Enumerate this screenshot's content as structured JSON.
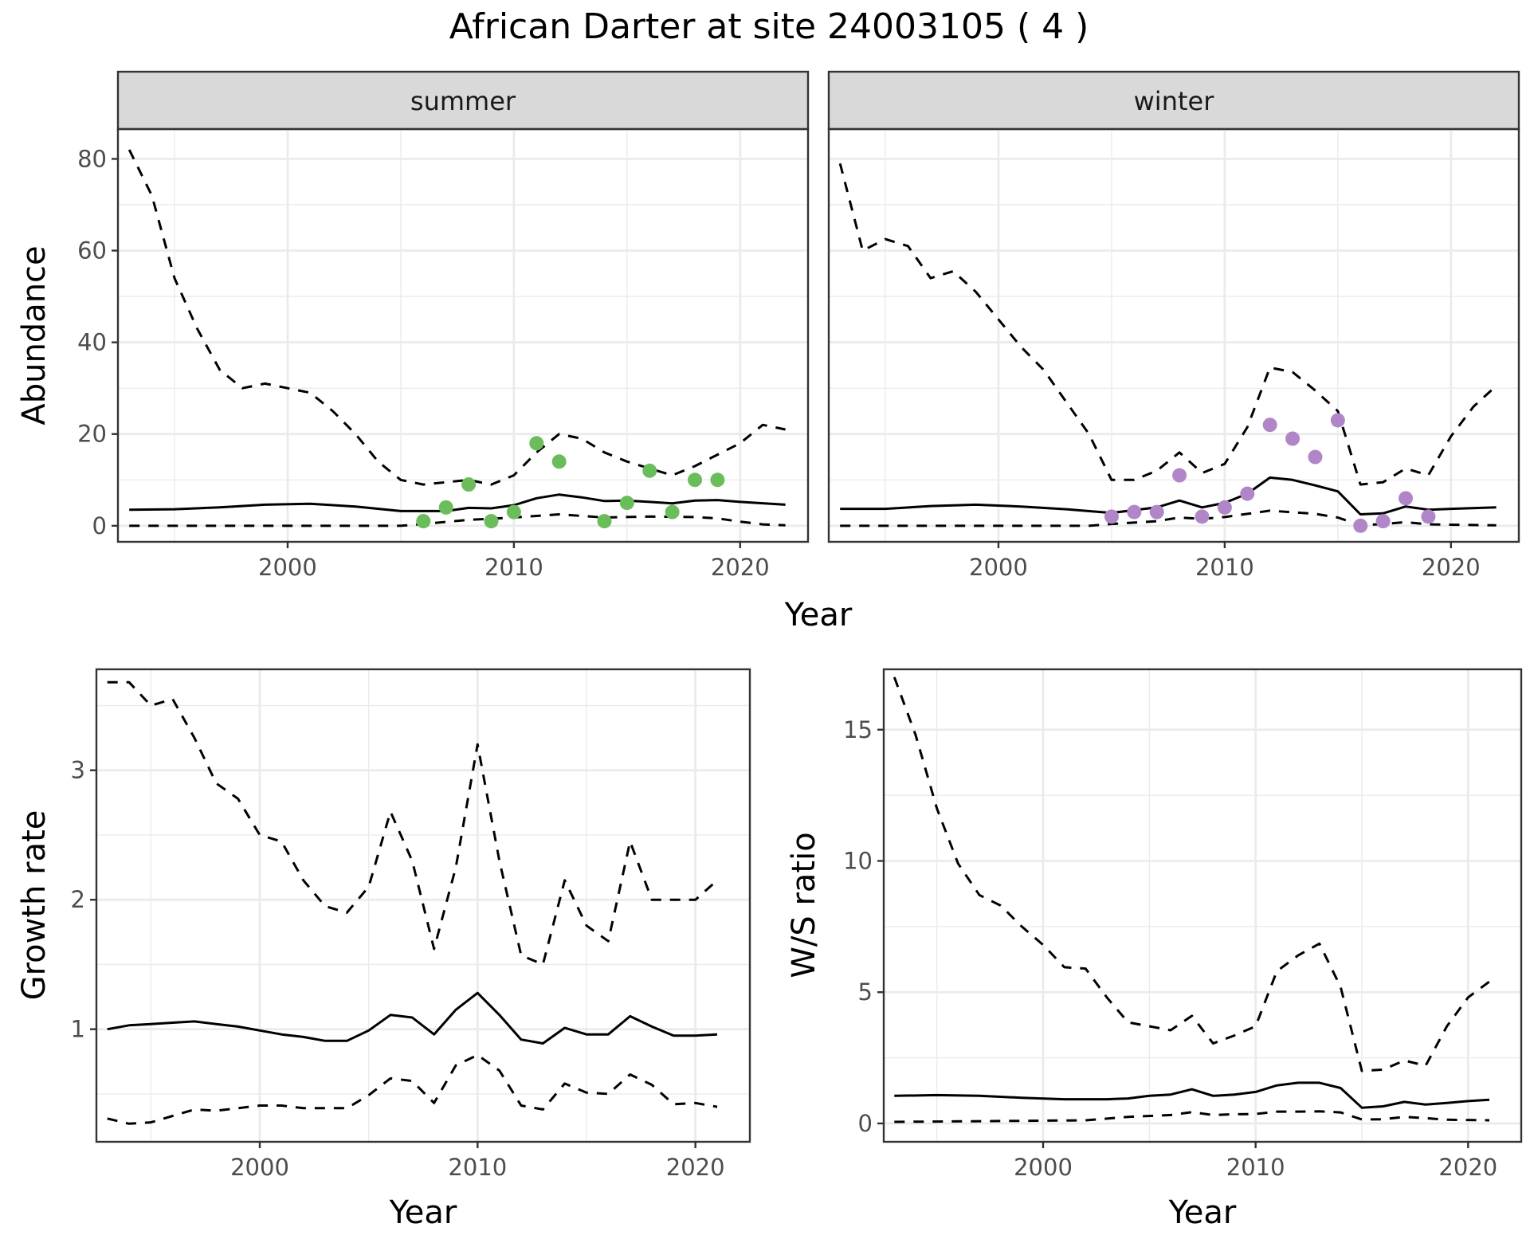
{
  "title": "African Darter at site 24003105 ( 4 )",
  "chart_data": [
    {
      "type": "line",
      "panel": "abundance",
      "facets": [
        "summer",
        "winter"
      ],
      "xlabel": "Year",
      "ylabel": "Abundance",
      "xlim": [
        1992.5,
        2023
      ],
      "ylim": [
        -3.5,
        86.5
      ],
      "x_ticks": [
        2000,
        2010,
        2020
      ],
      "y_ticks": [
        0,
        20,
        40,
        60,
        80
      ],
      "grid": true,
      "series": {
        "summer": {
          "median_x": [
            1993,
            1995,
            1997,
            1999,
            2001,
            2003,
            2005,
            2007,
            2008,
            2009,
            2010,
            2011,
            2012,
            2013,
            2014,
            2015,
            2016,
            2017,
            2018,
            2019,
            2020,
            2022
          ],
          "median_y": [
            3.5,
            3.6,
            4.0,
            4.6,
            4.8,
            4.2,
            3.2,
            3.2,
            3.9,
            3.8,
            4.5,
            6.0,
            6.8,
            6.2,
            5.4,
            5.5,
            5.2,
            4.9,
            5.5,
            5.6,
            5.2,
            4.6
          ],
          "upper_x": [
            1993,
            1994,
            1995,
            1996,
            1997,
            1998,
            1999,
            2000,
            2001,
            2002,
            2003,
            2004,
            2005,
            2006,
            2007,
            2008,
            2009,
            2010,
            2011,
            2012,
            2013,
            2014,
            2015,
            2016,
            2017,
            2018,
            2019,
            2020,
            2021,
            2022
          ],
          "upper_y": [
            82,
            72,
            54,
            43,
            34,
            30,
            31,
            30,
            29,
            25,
            20,
            14,
            10,
            9,
            9.5,
            10,
            9,
            11,
            16,
            20,
            19,
            16,
            14,
            12.5,
            11,
            13,
            15.5,
            18,
            22,
            21
          ],
          "lower_x": [
            1993,
            2005,
            2006,
            2008,
            2010,
            2012,
            2014,
            2016,
            2018,
            2019,
            2020,
            2021,
            2022
          ],
          "lower_y": [
            0,
            0,
            0.4,
            1.3,
            1.8,
            2.5,
            1.8,
            2.0,
            1.9,
            1.6,
            0.9,
            0.3,
            0.1
          ],
          "points_x": [
            2006,
            2007,
            2008,
            2009,
            2010,
            2011,
            2012,
            2014,
            2015,
            2016,
            2017,
            2018,
            2019
          ],
          "points_y": [
            1,
            4,
            9,
            1,
            3,
            18,
            14,
            1,
            5,
            12,
            3,
            10,
            10
          ],
          "point_color": "#6abd5a"
        },
        "winter": {
          "median_x": [
            1993,
            1995,
            1997,
            1999,
            2001,
            2003,
            2005,
            2007,
            2008,
            2009,
            2010,
            2011,
            2012,
            2013,
            2014,
            2015,
            2016,
            2017,
            2018,
            2019,
            2020,
            2022
          ],
          "median_y": [
            3.7,
            3.7,
            4.3,
            4.6,
            4.2,
            3.6,
            2.8,
            4.0,
            5.5,
            4.0,
            5.0,
            7.0,
            10.5,
            10.0,
            8.8,
            7.5,
            2.5,
            2.7,
            4.2,
            3.5,
            3.7,
            4.0
          ],
          "upper_x": [
            1993,
            1994,
            1995,
            1996,
            1997,
            1998,
            1999,
            2000,
            2001,
            2002,
            2003,
            2004,
            2005,
            2006,
            2007,
            2008,
            2009,
            2010,
            2011,
            2012,
            2013,
            2014,
            2015,
            2016,
            2017,
            2018,
            2019,
            2020,
            2021,
            2022
          ],
          "upper_y": [
            79,
            60,
            62.5,
            61,
            54,
            55.5,
            51,
            45,
            39,
            34,
            27,
            20,
            10,
            10,
            12,
            16,
            11.5,
            13.5,
            21.5,
            34.5,
            33.5,
            29.5,
            25,
            9,
            9.5,
            12.5,
            11,
            19.5,
            26,
            30.5
          ],
          "lower_x": [
            1993,
            2004,
            2005,
            2007,
            2008,
            2009,
            2010,
            2012,
            2014,
            2015,
            2016,
            2017,
            2018,
            2019,
            2022
          ],
          "lower_y": [
            0,
            0,
            0.4,
            1.0,
            1.8,
            1.5,
            1.9,
            3.3,
            2.6,
            1.8,
            0.1,
            0.4,
            0.8,
            0.3,
            0.1
          ],
          "points_x": [
            2005,
            2006,
            2007,
            2008,
            2009,
            2010,
            2011,
            2012,
            2013,
            2014,
            2015,
            2016,
            2017,
            2018,
            2019
          ],
          "points_y": [
            2,
            3,
            3,
            11,
            2,
            4,
            7,
            22,
            19,
            15,
            23,
            0,
            1,
            6,
            2
          ],
          "point_color": "#b086c8"
        }
      }
    },
    {
      "type": "line",
      "panel": "growth",
      "xlabel": "Year",
      "ylabel": "Growth rate",
      "xlim": [
        1992.5,
        2022.5
      ],
      "ylim": [
        0.13,
        3.78
      ],
      "x_ticks": [
        2000,
        2010,
        2020
      ],
      "y_ticks": [
        1,
        2,
        3
      ],
      "grid": true,
      "median_x": [
        1993,
        1994,
        1995,
        1996,
        1997,
        1998,
        1999,
        2000,
        2001,
        2002,
        2003,
        2004,
        2005,
        2006,
        2007,
        2008,
        2009,
        2010,
        2011,
        2012,
        2013,
        2014,
        2015,
        2016,
        2017,
        2018,
        2019,
        2020,
        2021
      ],
      "median_y": [
        1.0,
        1.03,
        1.04,
        1.05,
        1.06,
        1.04,
        1.02,
        0.99,
        0.96,
        0.94,
        0.91,
        0.91,
        0.99,
        1.11,
        1.09,
        0.96,
        1.15,
        1.28,
        1.11,
        0.92,
        0.89,
        1.01,
        0.96,
        0.96,
        1.1,
        1.02,
        0.95,
        0.95,
        0.96
      ],
      "upper_x": [
        1993,
        1994,
        1995,
        1996,
        1997,
        1998,
        1999,
        2000,
        2001,
        2002,
        2003,
        2004,
        2005,
        2006,
        2007,
        2008,
        2009,
        2010,
        2011,
        2012,
        2013,
        2014,
        2015,
        2016,
        2017,
        2018,
        2019,
        2020,
        2021
      ],
      "upper_y": [
        3.68,
        3.68,
        3.5,
        3.55,
        3.25,
        2.9,
        2.78,
        2.5,
        2.45,
        2.15,
        1.95,
        1.9,
        2.1,
        2.68,
        2.3,
        1.62,
        2.25,
        3.2,
        2.3,
        1.57,
        1.5,
        2.15,
        1.8,
        1.68,
        2.45,
        2.0,
        2.0,
        2.0,
        2.15
      ],
      "lower_x": [
        1993,
        1994,
        1995,
        1996,
        1997,
        1998,
        1999,
        2000,
        2001,
        2002,
        2003,
        2004,
        2005,
        2006,
        2007,
        2008,
        2009,
        2010,
        2011,
        2012,
        2013,
        2014,
        2015,
        2016,
        2017,
        2018,
        2019,
        2020,
        2021
      ],
      "lower_y": [
        0.31,
        0.27,
        0.28,
        0.33,
        0.38,
        0.37,
        0.39,
        0.41,
        0.41,
        0.39,
        0.39,
        0.39,
        0.49,
        0.62,
        0.6,
        0.43,
        0.72,
        0.8,
        0.68,
        0.41,
        0.38,
        0.58,
        0.51,
        0.5,
        0.65,
        0.57,
        0.42,
        0.43,
        0.4
      ]
    },
    {
      "type": "line",
      "panel": "ws_ratio",
      "xlabel": "Year",
      "ylabel": "W/S ratio",
      "xlim": [
        1992.5,
        2022.5
      ],
      "ylim": [
        -0.7,
        17.3
      ],
      "x_ticks": [
        2000,
        2010,
        2020
      ],
      "y_ticks": [
        0,
        5,
        10,
        15
      ],
      "grid": true,
      "median_x": [
        1993,
        1995,
        1997,
        1999,
        2001,
        2003,
        2004,
        2005,
        2006,
        2007,
        2008,
        2009,
        2010,
        2011,
        2012,
        2013,
        2014,
        2015,
        2016,
        2017,
        2018,
        2019,
        2020,
        2021
      ],
      "median_y": [
        1.05,
        1.08,
        1.05,
        0.98,
        0.92,
        0.92,
        0.95,
        1.05,
        1.1,
        1.3,
        1.05,
        1.1,
        1.2,
        1.45,
        1.55,
        1.55,
        1.35,
        0.6,
        0.65,
        0.82,
        0.72,
        0.78,
        0.85,
        0.9
      ],
      "upper_x": [
        1993,
        1994,
        1995,
        1996,
        1997,
        1998,
        1999,
        2000,
        2001,
        2002,
        2003,
        2004,
        2005,
        2006,
        2007,
        2008,
        2009,
        2010,
        2011,
        2012,
        2013,
        2014,
        2015,
        2016,
        2017,
        2018,
        2019,
        2020,
        2021
      ],
      "upper_y": [
        17.0,
        14.8,
        12.0,
        9.9,
        8.7,
        8.3,
        7.5,
        6.8,
        5.95,
        5.9,
        4.8,
        3.85,
        3.7,
        3.55,
        4.1,
        3.05,
        3.35,
        3.7,
        5.8,
        6.4,
        6.85,
        5.2,
        2.0,
        2.05,
        2.4,
        2.2,
        3.7,
        4.8,
        5.4
      ],
      "lower_x": [
        1993,
        2002,
        2004,
        2006,
        2007,
        2008,
        2009,
        2010,
        2011,
        2012,
        2013,
        2014,
        2015,
        2016,
        2017,
        2018,
        2019,
        2021
      ],
      "lower_y": [
        0.06,
        0.12,
        0.25,
        0.32,
        0.43,
        0.32,
        0.35,
        0.36,
        0.45,
        0.45,
        0.46,
        0.42,
        0.15,
        0.16,
        0.25,
        0.2,
        0.14,
        0.12
      ]
    }
  ]
}
